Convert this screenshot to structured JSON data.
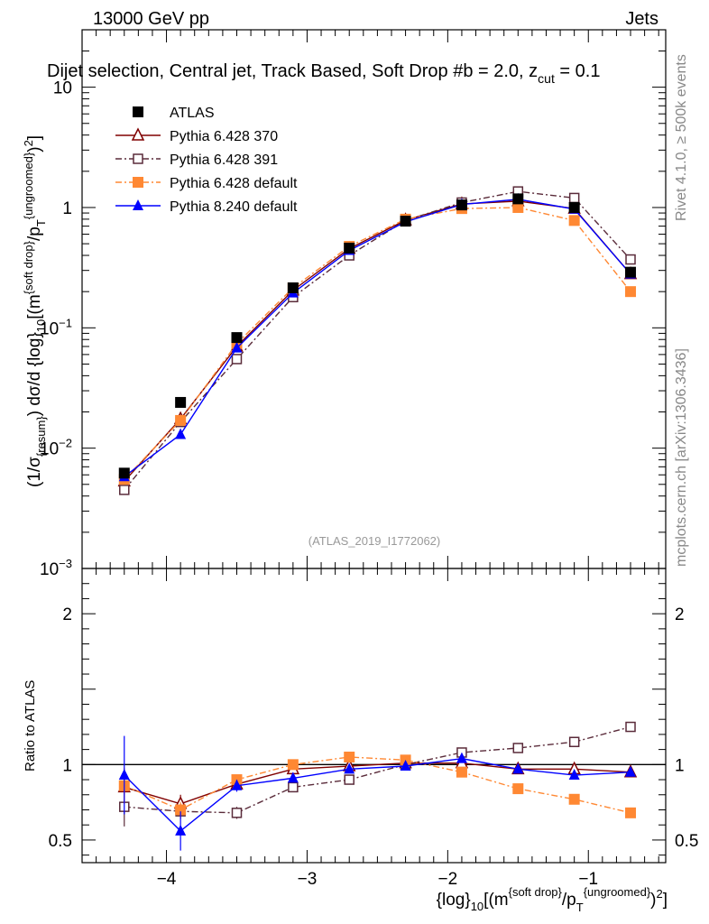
{
  "header": {
    "energy_label": "13000 GeV pp",
    "category_label": "Jets",
    "selection_title": "Dijet selection, Central jet, Track Based, Soft Drop #b = 2.0, z",
    "zcut_subscript": "cut",
    "zcut_value": " = 0.1",
    "rivet_label": "Rivet 4.1.0, ≥ 500k events",
    "mcplots_label": "mcplots.cern.ch [arXiv:1306.3436]",
    "analysis_label": "(ATLAS_2019_I1772062)"
  },
  "axes": {
    "ylabel_main": "(1/σ{resum}) dσ/d {log}10[(m{soft drop}/pT{ungroomed})²]",
    "ylabel_ratio": "Ratio to ATLAS",
    "xlabel": "{log}10[(m{soft drop}/pT{ungroomed})²]"
  },
  "chart_data": {
    "type": "line",
    "title": "Dijet selection, Central jet, Track Based, Soft Drop #b = 2.0, z_cut = 0.1",
    "xlim": [
      -4.6,
      -0.45
    ],
    "main_ylim": [
      0.001,
      30
    ],
    "main_yscale": "log",
    "ratio_ylim": [
      0.35,
      2.3
    ],
    "x": [
      -4.3,
      -3.9,
      -3.5,
      -3.1,
      -2.7,
      -2.3,
      -1.9,
      -1.5,
      -1.1,
      -0.7
    ],
    "x_ticks": [
      -4,
      -3,
      -2,
      -1
    ],
    "x_tick_labels": [
      "−4",
      "−3",
      "−2",
      "−1"
    ],
    "main_y_ticks": [
      0.001,
      0.01,
      0.1,
      1,
      10
    ],
    "main_y_tick_labels": [
      [
        "10",
        "−3"
      ],
      [
        "10",
        "−2"
      ],
      [
        "10",
        "−1"
      ],
      [
        "1",
        ""
      ],
      [
        "10",
        ""
      ]
    ],
    "ratio_y_ticks": [
      0.5,
      1,
      2
    ],
    "ratio_y_tick_labels": [
      "0.5",
      "1",
      "2"
    ],
    "legend_position": "top-left",
    "reference": {
      "name": "ATLAS",
      "values": [
        0.0062,
        0.024,
        0.083,
        0.215,
        0.46,
        0.77,
        1.05,
        1.18,
        1.0,
        0.29
      ],
      "errors": [
        0.0004,
        0.0015,
        0.005,
        0.01,
        0.02,
        0.03,
        0.04,
        0.05,
        0.05,
        0.02
      ],
      "color": "#000000",
      "marker": "square"
    },
    "series": [
      {
        "name": "Pythia 6.428 370",
        "color": "#800000",
        "dash": "",
        "marker": "triangle-open",
        "values": [
          0.0053,
          0.0175,
          0.07,
          0.205,
          0.455,
          0.785,
          1.07,
          1.13,
          0.98,
          0.28
        ],
        "ratio": [
          0.85,
          0.74,
          0.87,
          0.97,
          0.99,
          1.01,
          1.01,
          0.97,
          0.97,
          0.95
        ],
        "ratio_err": [
          0.12,
          0.06,
          0.04,
          0.02,
          0.02,
          0.02,
          0.02,
          0.02,
          0.02,
          0.02
        ]
      },
      {
        "name": "Pythia 6.428 391",
        "color": "#5a2b3a",
        "dash": "7,3,2,3",
        "marker": "square-open",
        "values": [
          0.0045,
          0.0165,
          0.055,
          0.18,
          0.4,
          0.78,
          1.1,
          1.36,
          1.2,
          0.37
        ],
        "ratio": [
          0.72,
          0.69,
          0.68,
          0.85,
          0.9,
          1.0,
          1.08,
          1.11,
          1.15,
          1.25
        ],
        "ratio_err": [
          0.13,
          0.05,
          0.04,
          0.02,
          0.02,
          0.02,
          0.02,
          0.02,
          0.02,
          0.02
        ]
      },
      {
        "name": "Pythia 6.428 default",
        "color": "#ff8833",
        "dash": "7,3,2,3",
        "marker": "square",
        "values": [
          0.0055,
          0.017,
          0.074,
          0.215,
          0.475,
          0.8,
          0.98,
          1.0,
          0.78,
          0.2
        ],
        "ratio": [
          0.86,
          0.7,
          0.9,
          1.0,
          1.05,
          1.03,
          0.95,
          0.84,
          0.77,
          0.68
        ],
        "ratio_err": [
          0.12,
          0.05,
          0.03,
          0.02,
          0.02,
          0.02,
          0.02,
          0.02,
          0.02,
          0.02
        ]
      },
      {
        "name": "Pythia 8.240 default",
        "color": "#0000ff",
        "dash": "",
        "marker": "triangle",
        "values": [
          0.0058,
          0.013,
          0.068,
          0.195,
          0.44,
          0.76,
          1.06,
          1.17,
          0.97,
          0.28
        ],
        "ratio": [
          0.93,
          0.56,
          0.86,
          0.91,
          0.97,
          0.99,
          1.04,
          0.97,
          0.93,
          0.95
        ],
        "ratio_err": [
          0.26,
          0.13,
          0.04,
          0.02,
          0.02,
          0.02,
          0.02,
          0.02,
          0.02,
          0.02
        ]
      }
    ]
  }
}
